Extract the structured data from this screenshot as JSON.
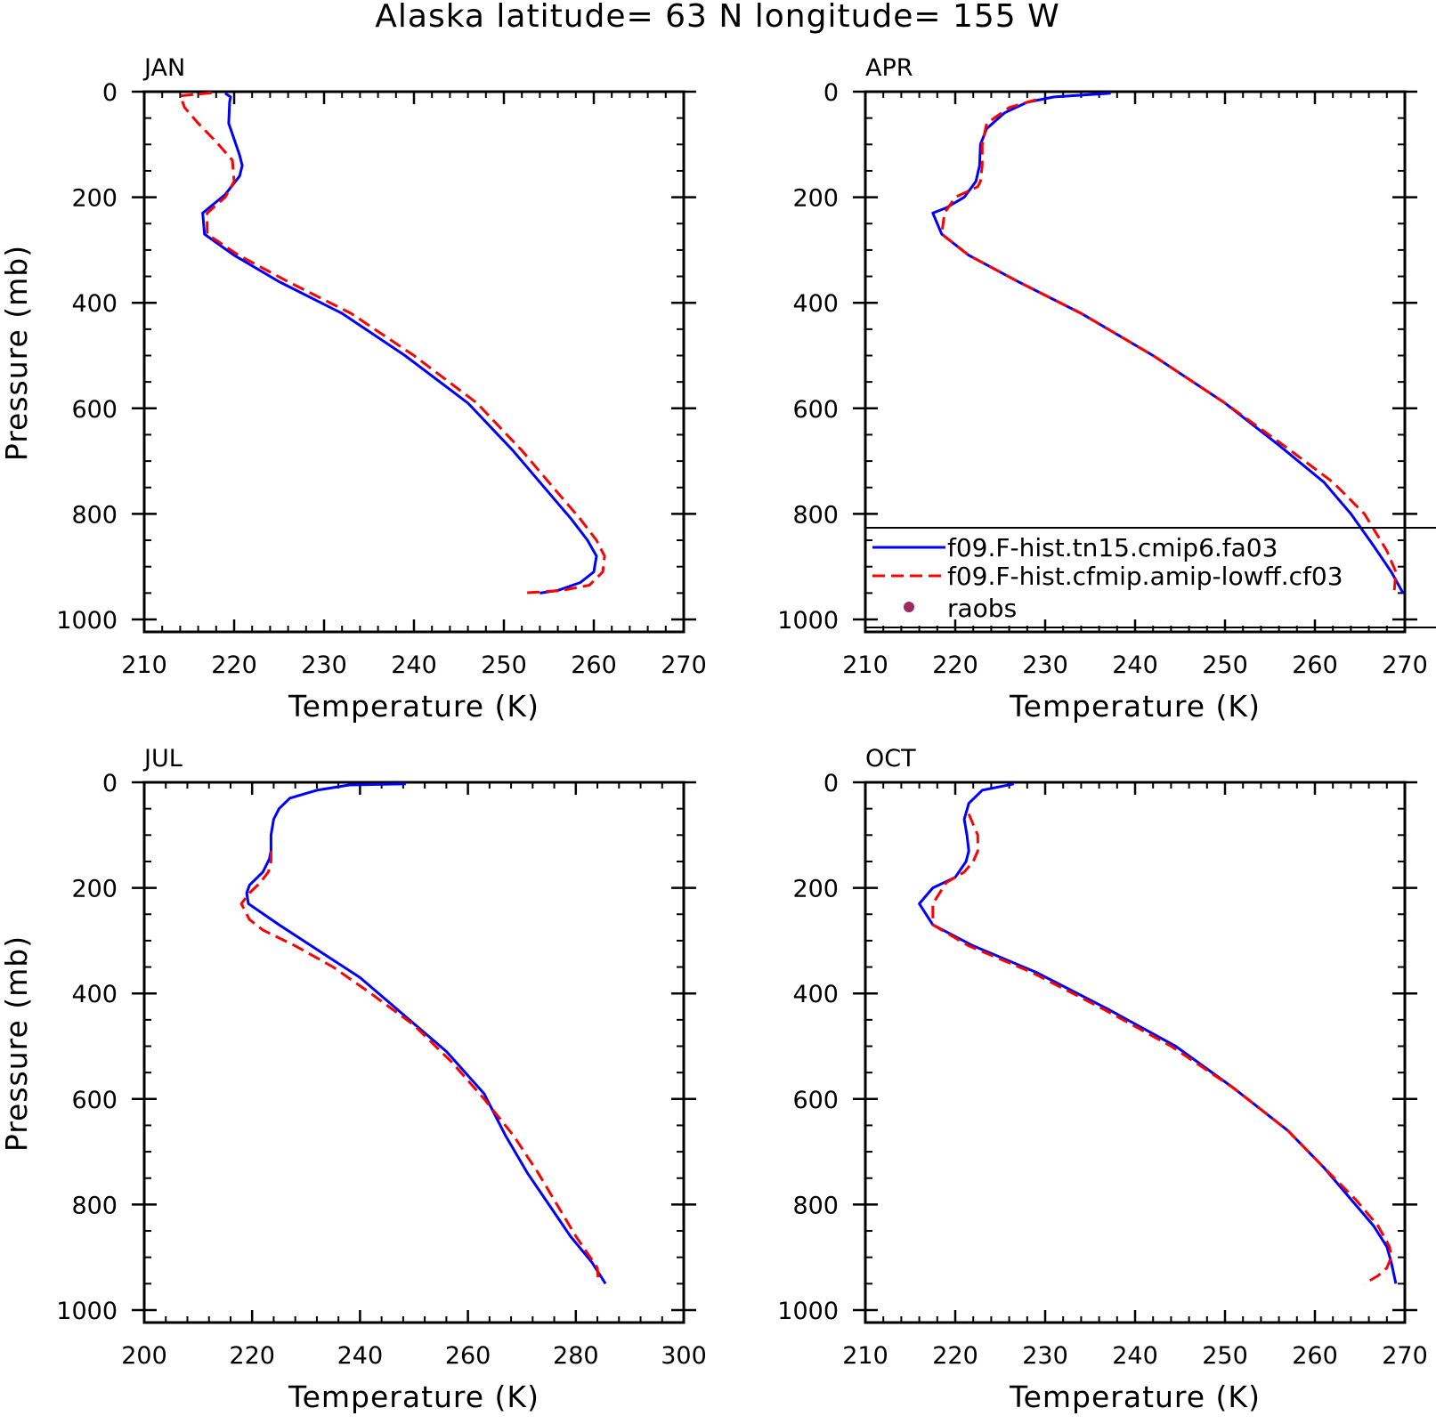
{
  "title": "Alaska  latitude= 63 N longitude= 155 W",
  "legend": {
    "entries": [
      {
        "label": "f09.F-hist.tn15.cmip6.fa03",
        "color": "#0000ff",
        "style": "solid"
      },
      {
        "label": "f09.F-hist.cfmip.amip-lowff.cf03",
        "color": "#ff0000",
        "style": "dashed"
      },
      {
        "label": "raobs",
        "color": "#9e2a5e",
        "style": "marker"
      }
    ]
  },
  "chart_data": [
    {
      "type": "line",
      "title": "JAN",
      "xlabel": "Temperature (K)",
      "ylabel": "Pressure (mb)",
      "xlim": [
        210,
        270
      ],
      "ylim": [
        0,
        1000
      ],
      "y_inverted": true,
      "xticks": [
        210,
        220,
        230,
        240,
        250,
        260,
        270
      ],
      "yticks": [
        0,
        200,
        400,
        600,
        800,
        1000
      ],
      "series": [
        {
          "name": "f09.F-hist.tn15.cmip6.fa03",
          "color": "#0000ff",
          "dash": false,
          "x": [
            219.0,
            219.6,
            219.5,
            219.4,
            220.0,
            220.6,
            220.9,
            220.6,
            219.0,
            216.5,
            216.7,
            220.0,
            225.0,
            232.0,
            239.0,
            246.0,
            251.0,
            254.5,
            257.5,
            259.3,
            260.3,
            260.0,
            258.5,
            256.0,
            254.0
          ],
          "y": [
            3,
            10,
            20,
            60,
            90,
            120,
            140,
            160,
            195,
            230,
            270,
            310,
            360,
            420,
            500,
            590,
            680,
            750,
            810,
            850,
            880,
            910,
            930,
            945,
            950
          ]
        },
        {
          "name": "f09.F-hist.cfmip.amip-lowff.cf03",
          "color": "#ff0000",
          "dash": true,
          "x": [
            217.5,
            214.0,
            214.5,
            216.0,
            218.0,
            219.8,
            220.0,
            219.0,
            217.0,
            217.0,
            220.5,
            226.0,
            233.0,
            240.0,
            247.0,
            252.0,
            255.5,
            258.5,
            260.3,
            261.2,
            261.0,
            259.5,
            256.5,
            252.0
          ],
          "y": [
            2,
            8,
            30,
            60,
            95,
            130,
            170,
            200,
            230,
            270,
            310,
            360,
            420,
            500,
            590,
            680,
            750,
            810,
            850,
            880,
            910,
            935,
            945,
            950
          ]
        }
      ]
    },
    {
      "type": "line",
      "title": "APR",
      "xlabel": "Temperature (K)",
      "ylabel": "",
      "xlim": [
        210,
        270
      ],
      "ylim": [
        0,
        1000
      ],
      "y_inverted": true,
      "xticks": [
        210,
        220,
        230,
        240,
        250,
        260,
        270
      ],
      "yticks": [
        0,
        200,
        400,
        600,
        800,
        1000
      ],
      "series": [
        {
          "name": "f09.F-hist.tn15.cmip6.fa03",
          "color": "#0000ff",
          "dash": false,
          "x": [
            237.3,
            231.0,
            228.0,
            225.5,
            223.5,
            222.8,
            222.7,
            222.3,
            221.0,
            219.0,
            217.5,
            218.5,
            221.5,
            227.0,
            234.0,
            242.0,
            250.0,
            256.0,
            261.0,
            264.0,
            266.5,
            268.5,
            269.8
          ],
          "y": [
            3,
            10,
            20,
            40,
            70,
            100,
            140,
            170,
            200,
            220,
            230,
            270,
            310,
            360,
            420,
            500,
            590,
            670,
            740,
            800,
            860,
            910,
            950
          ]
        },
        {
          "name": "f09.F-hist.cfmip.amip-lowff.cf03",
          "color": "#ff0000",
          "dash": true,
          "x": [
            229.0,
            226.0,
            223.5,
            223.0,
            223.0,
            222.8,
            222.5,
            220.0,
            218.8,
            218.5,
            221.5,
            227.0,
            234.0,
            242.0,
            250.0,
            256.5,
            262.0,
            265.5,
            268.0,
            269.0,
            268.8
          ],
          "y": [
            15,
            30,
            60,
            100,
            140,
            170,
            180,
            200,
            230,
            270,
            310,
            360,
            420,
            500,
            590,
            670,
            740,
            800,
            870,
            910,
            950
          ]
        }
      ]
    },
    {
      "type": "line",
      "title": "JUL",
      "xlabel": "Temperature (K)",
      "ylabel": "Pressure (mb)",
      "xlim": [
        200,
        300
      ],
      "ylim": [
        0,
        1000
      ],
      "y_inverted": true,
      "xticks": [
        200,
        220,
        240,
        260,
        280,
        300
      ],
      "yticks": [
        0,
        200,
        400,
        600,
        800,
        1000
      ],
      "series": [
        {
          "name": "f09.F-hist.tn15.cmip6.fa03",
          "color": "#0000ff",
          "dash": false,
          "x": [
            248.5,
            238.0,
            232.0,
            227.0,
            225.0,
            224.0,
            223.5,
            223.5,
            223.2,
            222.0,
            219.5,
            219.0,
            219.3,
            225.0,
            240.0,
            248.0,
            256.0,
            263.0,
            267.0,
            271.0,
            275.0,
            279.0,
            283.0,
            285.5
          ],
          "y": [
            3,
            5,
            15,
            30,
            50,
            70,
            100,
            130,
            145,
            170,
            195,
            210,
            230,
            270,
            370,
            440,
            510,
            590,
            670,
            740,
            800,
            860,
            910,
            950
          ]
        },
        {
          "name": "f09.F-hist.cfmip.amip-lowff.cf03",
          "color": "#ff0000",
          "dash": true,
          "x": [
            223.5,
            223.5,
            223.0,
            221.5,
            219.5,
            218.0,
            219.5,
            222.0,
            228.0,
            235.0,
            242.0,
            250.0,
            257.0,
            263.0,
            268.5,
            273.0,
            276.5,
            280.0,
            284.0,
            284.2
          ],
          "y": [
            130,
            150,
            170,
            190,
            210,
            230,
            260,
            280,
            310,
            350,
            400,
            460,
            530,
            600,
            670,
            740,
            800,
            860,
            920,
            950
          ]
        }
      ]
    },
    {
      "type": "line",
      "title": "OCT",
      "xlabel": "Temperature (K)",
      "ylabel": "",
      "xlim": [
        210,
        270
      ],
      "ylim": [
        0,
        1000
      ],
      "y_inverted": true,
      "xticks": [
        210,
        220,
        230,
        240,
        250,
        260,
        270
      ],
      "yticks": [
        0,
        200,
        400,
        600,
        800,
        1000
      ],
      "series": [
        {
          "name": "f09.F-hist.tn15.cmip6.fa03",
          "color": "#0000ff",
          "dash": false,
          "x": [
            226.5,
            223.0,
            221.5,
            221.0,
            221.3,
            221.5,
            221.2,
            220.0,
            217.5,
            216.0,
            217.5,
            222.0,
            229.0,
            237.0,
            244.5,
            251.0,
            257.0,
            261.0,
            264.0,
            266.5,
            268.0,
            268.5,
            269.0
          ],
          "y": [
            3,
            15,
            40,
            70,
            100,
            130,
            150,
            180,
            200,
            230,
            270,
            310,
            360,
            430,
            500,
            580,
            660,
            730,
            790,
            840,
            880,
            910,
            950
          ]
        },
        {
          "name": "f09.F-hist.cfmip.amip-lowff.cf03",
          "color": "#ff0000",
          "dash": true,
          "x": [
            221.5,
            222.0,
            222.5,
            222.5,
            222.0,
            221.0,
            219.0,
            217.5,
            217.5,
            221.5,
            228.5,
            236.5,
            244.0,
            251.0,
            257.0,
            261.0,
            264.5,
            267.0,
            268.3,
            268.5,
            268.0,
            267.0,
            265.5
          ],
          "y": [
            60,
            80,
            100,
            130,
            150,
            170,
            190,
            230,
            270,
            310,
            360,
            430,
            500,
            580,
            660,
            730,
            790,
            840,
            880,
            900,
            920,
            935,
            950
          ]
        }
      ]
    }
  ]
}
